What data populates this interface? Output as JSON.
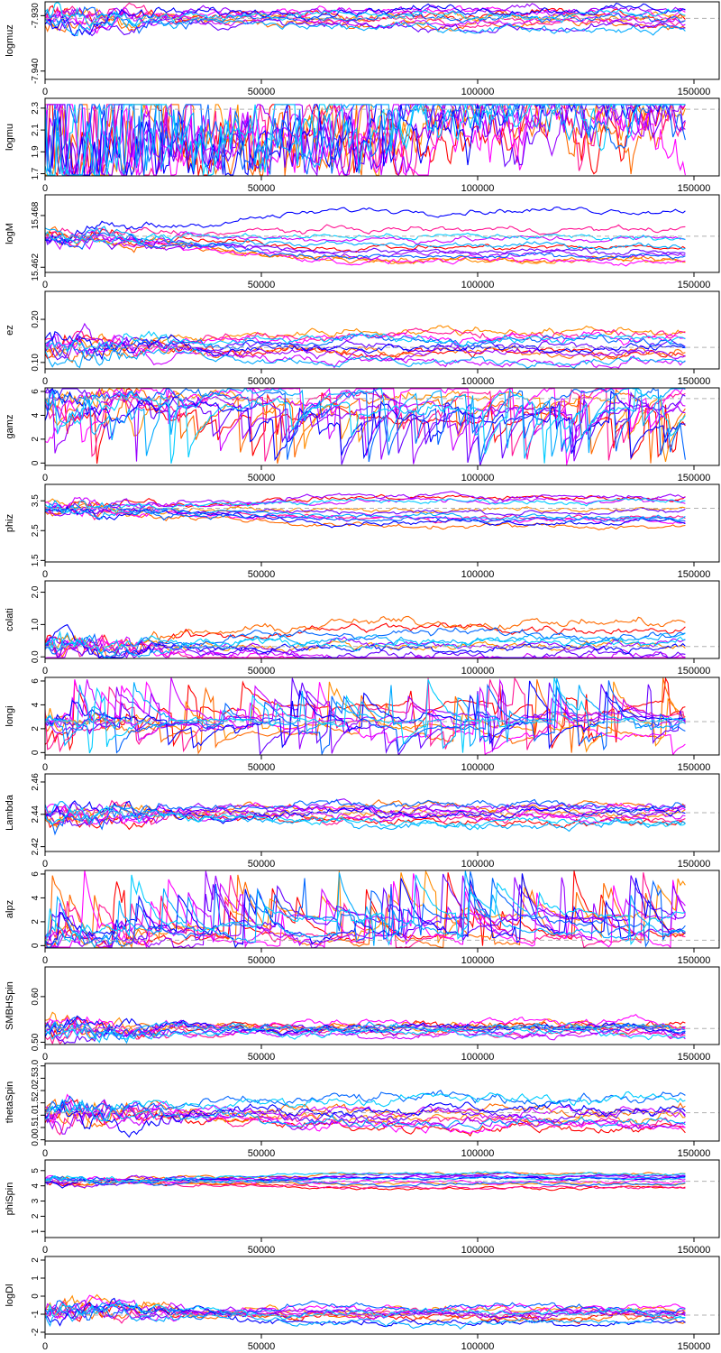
{
  "chart_data": [
    {
      "type": "line",
      "ylabel": "logmuz",
      "xlim": [
        0,
        150000
      ],
      "ylim": [
        -7.9415,
        -7.9275
      ],
      "yticks": [
        -7.93,
        -7.94
      ],
      "ytick_labels": [
        "-7.930",
        "-7.940"
      ],
      "xticks": [
        0,
        50000,
        100000,
        150000
      ],
      "xtick_labels": [
        "0",
        "50000",
        "100000",
        "150000"
      ],
      "reference": -7.9305,
      "style": "drift",
      "noise": 0.00045,
      "spread": 0.0018,
      "grid": false,
      "legend": "none"
    },
    {
      "type": "line",
      "ylabel": "logmu",
      "xlim": [
        0,
        150000
      ],
      "ylim": [
        1.68,
        2.39
      ],
      "yticks": [
        1.7,
        1.9,
        2.1,
        2.3
      ],
      "ytick_labels": [
        "1.7",
        "1.9",
        "2.1",
        "2.3"
      ],
      "xticks": [
        0,
        50000,
        100000,
        150000
      ],
      "xtick_labels": [
        "0",
        "50000",
        "100000",
        "150000"
      ],
      "reference": 2.29,
      "style": "capped",
      "noise": 0.18,
      "spread": 0.25,
      "grid": false,
      "legend": "none"
    },
    {
      "type": "line",
      "ylabel": "logM",
      "xlim": [
        0,
        150000
      ],
      "ylim": [
        15.4614,
        15.4704
      ],
      "yticks": [
        15.462,
        15.468
      ],
      "ytick_labels": [
        "15.462",
        "15.468"
      ],
      "xticks": [
        0,
        50000,
        100000,
        150000
      ],
      "xtick_labels": [
        "0",
        "50000",
        "100000",
        "150000"
      ],
      "reference": 15.4656,
      "style": "diverge",
      "noise": 0.0002,
      "spread": 0.0035,
      "grid": false,
      "legend": "none"
    },
    {
      "type": "line",
      "ylabel": "ez",
      "xlim": [
        0,
        150000
      ],
      "ylim": [
        0.085,
        0.265
      ],
      "yticks": [
        0.1,
        0.2
      ],
      "ytick_labels": [
        "0.10",
        "0.20"
      ],
      "xticks": [
        0,
        50000,
        100000,
        150000
      ],
      "xtick_labels": [
        "0",
        "50000",
        "100000",
        "150000"
      ],
      "reference": 0.135,
      "style": "drift",
      "noise": 0.006,
      "spread": 0.04,
      "grid": false,
      "legend": "none"
    },
    {
      "type": "line",
      "ylabel": "gamz",
      "xlim": [
        0,
        150000
      ],
      "ylim": [
        -0.2,
        6.3
      ],
      "yticks": [
        0,
        2,
        4,
        6
      ],
      "ytick_labels": [
        "0",
        "2",
        "4",
        "6"
      ],
      "xticks": [
        0,
        50000,
        100000,
        150000
      ],
      "xtick_labels": [
        "0",
        "50000",
        "100000",
        "150000"
      ],
      "reference": 5.4,
      "style": "wide",
      "noise": 0.25,
      "spread": 2.2,
      "grid": false,
      "legend": "none"
    },
    {
      "type": "line",
      "ylabel": "phiz",
      "xlim": [
        0,
        150000
      ],
      "ylim": [
        1.45,
        4.05
      ],
      "yticks": [
        1.5,
        2.5,
        3.5
      ],
      "ytick_labels": [
        "1.5",
        "2.5",
        "3.5"
      ],
      "xticks": [
        0,
        50000,
        100000,
        150000
      ],
      "xtick_labels": [
        "0",
        "50000",
        "100000",
        "150000"
      ],
      "reference": 3.25,
      "style": "diverge",
      "noise": 0.05,
      "spread": 0.7,
      "grid": false,
      "legend": "none"
    },
    {
      "type": "line",
      "ylabel": "colati",
      "xlim": [
        0,
        150000
      ],
      "ylim": [
        -0.05,
        2.35
      ],
      "yticks": [
        0.0,
        1.0,
        2.0
      ],
      "ytick_labels": [
        "0.0",
        "1.0",
        "2.0"
      ],
      "xticks": [
        0,
        50000,
        100000,
        150000
      ],
      "xtick_labels": [
        "0",
        "50000",
        "100000",
        "150000"
      ],
      "reference": 0.32,
      "style": "diverge",
      "noise": 0.08,
      "spread": 0.8,
      "grid": false,
      "legend": "none"
    },
    {
      "type": "line",
      "ylabel": "longi",
      "xlim": [
        0,
        150000
      ],
      "ylim": [
        -0.2,
        6.3
      ],
      "yticks": [
        0,
        2,
        4,
        6
      ],
      "ytick_labels": [
        "0",
        "2",
        "4",
        "6"
      ],
      "xticks": [
        0,
        50000,
        100000,
        150000
      ],
      "xtick_labels": [
        "0",
        "50000",
        "100000",
        "150000"
      ],
      "reference": 2.6,
      "style": "wide",
      "noise": 0.15,
      "spread": 1.6,
      "grid": false,
      "legend": "none"
    },
    {
      "type": "line",
      "ylabel": "Lambda",
      "xlim": [
        0,
        150000
      ],
      "ylim": [
        2.417,
        2.465
      ],
      "yticks": [
        2.42,
        2.44,
        2.46
      ],
      "ytick_labels": [
        "2.42",
        "2.44",
        "2.46"
      ],
      "xticks": [
        0,
        50000,
        100000,
        150000
      ],
      "xtick_labels": [
        "0",
        "50000",
        "100000",
        "150000"
      ],
      "reference": 2.441,
      "style": "drift",
      "noise": 0.0015,
      "spread": 0.008,
      "grid": false,
      "legend": "none"
    },
    {
      "type": "line",
      "ylabel": "alpz",
      "xlim": [
        0,
        150000
      ],
      "ylim": [
        -0.2,
        6.3
      ],
      "yticks": [
        0,
        2,
        4,
        6
      ],
      "ytick_labels": [
        "0",
        "2",
        "4",
        "6"
      ],
      "xticks": [
        0,
        50000,
        100000,
        150000
      ],
      "xtick_labels": [
        "0",
        "50000",
        "100000",
        "150000"
      ],
      "reference": 0.45,
      "style": "wide",
      "noise": 0.2,
      "spread": 2.4,
      "grid": false,
      "legend": "none"
    },
    {
      "type": "line",
      "ylabel": "SMBHSpin",
      "xlim": [
        0,
        150000
      ],
      "ylim": [
        0.495,
        0.665
      ],
      "yticks": [
        0.5,
        0.6
      ],
      "ytick_labels": [
        "0.50",
        "0.60"
      ],
      "xticks": [
        0,
        50000,
        100000,
        150000
      ],
      "xtick_labels": [
        "0",
        "50000",
        "100000",
        "150000"
      ],
      "reference": 0.53,
      "style": "drift",
      "noise": 0.005,
      "spread": 0.015,
      "grid": false,
      "legend": "none"
    },
    {
      "type": "line",
      "ylabel": "thetaSpin",
      "xlim": [
        0,
        150000
      ],
      "ylim": [
        -0.05,
        3.1
      ],
      "yticks": [
        0.0,
        0.5,
        1.0,
        1.5,
        2.0,
        2.5,
        3.0
      ],
      "ytick_labels": [
        "0.0",
        "0.5",
        "1.0",
        "1.5",
        "2.0",
        "2.5",
        "3.0"
      ],
      "xticks": [
        0,
        50000,
        100000,
        150000
      ],
      "xtick_labels": [
        "0",
        "50000",
        "100000",
        "150000"
      ],
      "reference": 1.1,
      "style": "diverge",
      "noise": 0.12,
      "spread": 1.1,
      "grid": false,
      "legend": "none"
    },
    {
      "type": "line",
      "ylabel": "phiSpin",
      "xlim": [
        0,
        150000
      ],
      "ylim": [
        0.6,
        5.7
      ],
      "yticks": [
        1,
        2,
        3,
        4,
        5
      ],
      "ytick_labels": [
        "1",
        "2",
        "3",
        "4",
        "5"
      ],
      "xticks": [
        0,
        50000,
        100000,
        150000
      ],
      "xtick_labels": [
        "0",
        "50000",
        "100000",
        "150000"
      ],
      "reference": 4.3,
      "style": "drift",
      "noise": 0.06,
      "spread": 0.6,
      "grid": false,
      "legend": "none"
    },
    {
      "type": "line",
      "ylabel": "logDl",
      "xlim": [
        0,
        150000
      ],
      "ylim": [
        -2.1,
        2.2
      ],
      "yticks": [
        -2,
        -1,
        0,
        1,
        2
      ],
      "ytick_labels": [
        "-2",
        "-1",
        "0",
        "1",
        "2"
      ],
      "xticks": [
        0,
        50000,
        100000,
        150000
      ],
      "xtick_labels": [
        "0",
        "50000",
        "100000",
        "150000"
      ],
      "reference": -1.05,
      "style": "decay",
      "noise": 0.12,
      "spread": 0.5,
      "grid": false,
      "legend": "none"
    }
  ],
  "series_colors": [
    "#ff0000",
    "#ff6a00",
    "#ff8c00",
    "#ff1493",
    "#ff00ff",
    "#cc00ff",
    "#9900ff",
    "#6600ff",
    "#0000ff",
    "#0066ff",
    "#00aaff",
    "#00ccff"
  ],
  "reference_line_color": "#b0b0b0"
}
